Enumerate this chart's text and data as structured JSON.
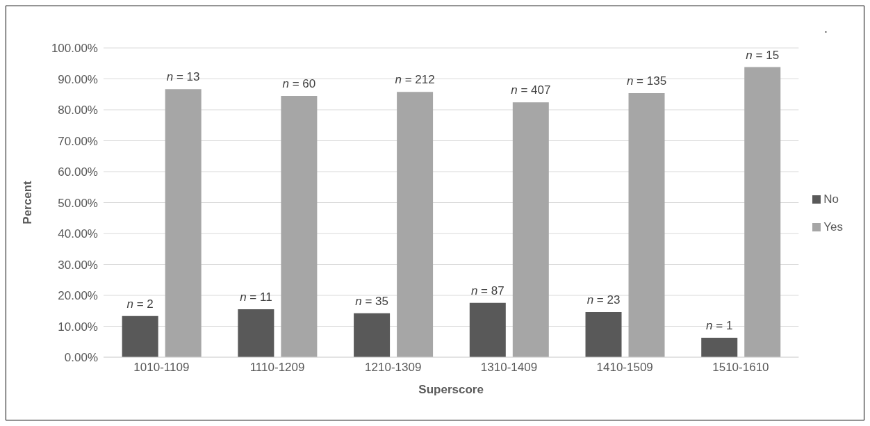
{
  "chart_data": {
    "type": "bar",
    "xlabel": "Superscore",
    "ylabel": "Percent",
    "categories": [
      "1010-1109",
      "1110-1209",
      "1210-1309",
      "1310-1409",
      "1410-1509",
      "1510-1610"
    ],
    "series": [
      {
        "name": "No",
        "color": "#595959",
        "values": [
          13.3,
          15.5,
          14.2,
          17.6,
          14.6,
          6.3
        ]
      },
      {
        "name": "Yes",
        "color": "#a6a6a6",
        "values": [
          86.7,
          84.5,
          85.8,
          82.4,
          85.4,
          93.8
        ]
      }
    ],
    "ylim": [
      0,
      100
    ],
    "yticks": [
      {
        "value": 0,
        "label": "0.00%"
      },
      {
        "value": 10,
        "label": "10.00%"
      },
      {
        "value": 20,
        "label": "20.00%"
      },
      {
        "value": 30,
        "label": "30.00%"
      },
      {
        "value": 40,
        "label": "40.00%"
      },
      {
        "value": 50,
        "label": "50.00%"
      },
      {
        "value": 60,
        "label": "60.00%"
      },
      {
        "value": 70,
        "label": "70.00%"
      },
      {
        "value": 80,
        "label": "80.00%"
      },
      {
        "value": 90,
        "label": "90.00%"
      },
      {
        "value": 100,
        "label": "100.00%"
      }
    ],
    "grid": "y",
    "legend": "right",
    "annotations": [
      ".",
      "n = 2",
      "n = 13",
      "n = 11",
      "n = 60",
      "n = 35",
      "n = 212",
      "n = 87",
      "n = 407",
      "n = 23",
      "n = 135",
      "n = 1",
      "n = 15"
    ]
  }
}
